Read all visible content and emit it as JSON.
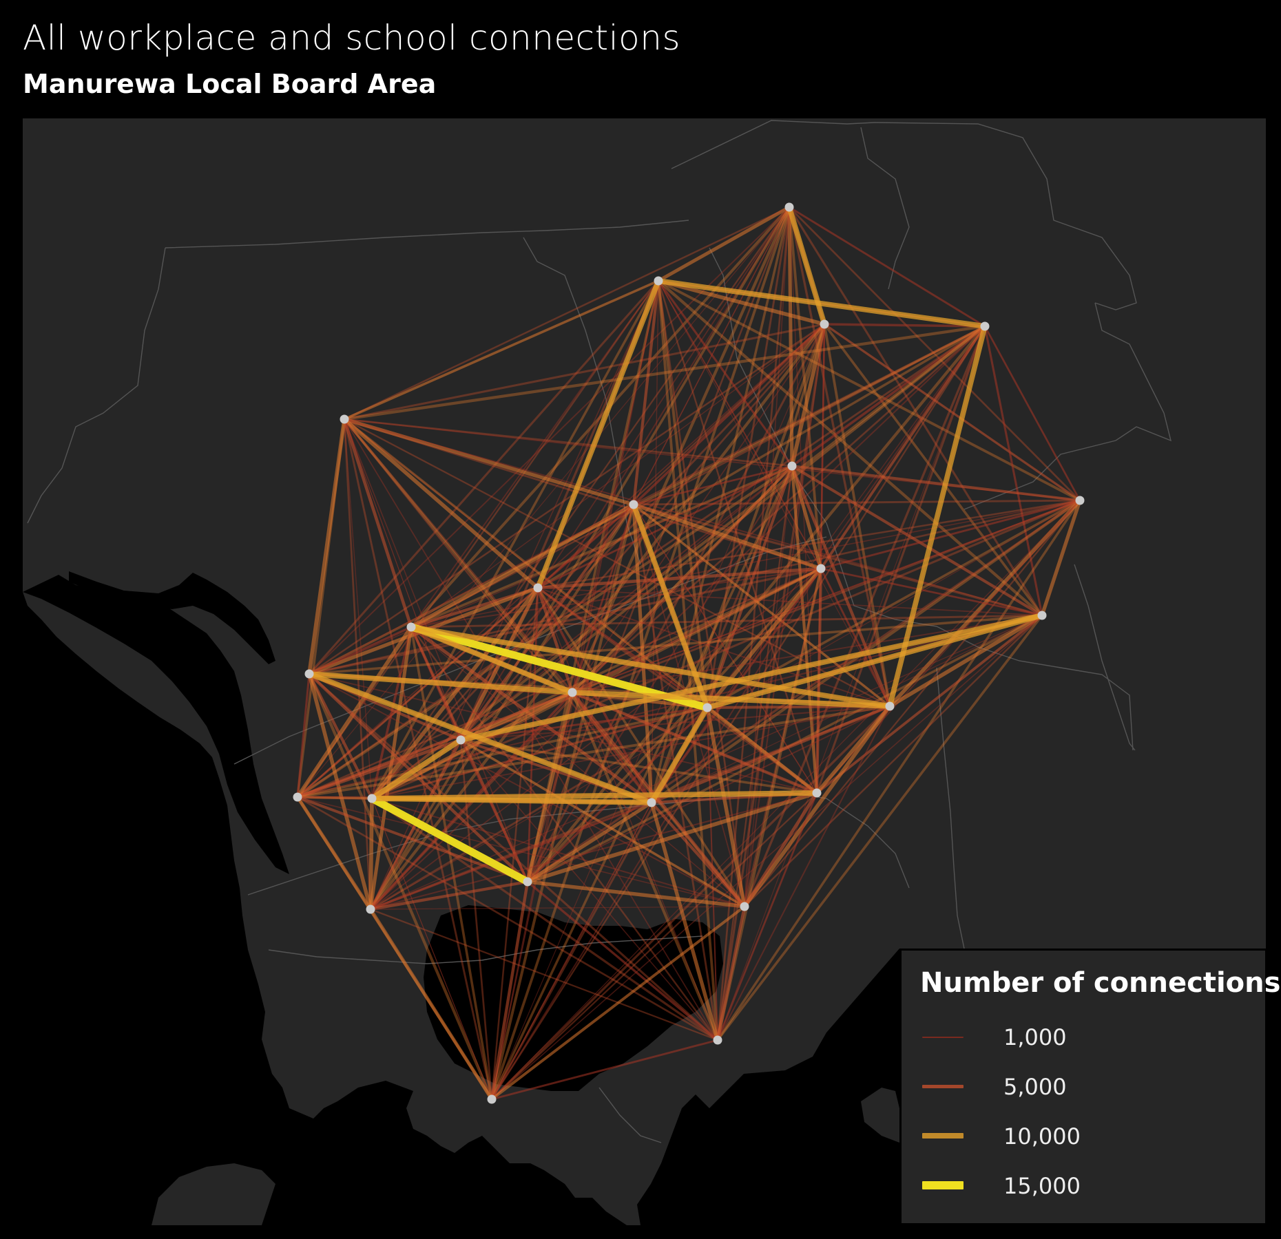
{
  "title": "All workplace and school connections",
  "subtitle": "Manurewa Local Board Area",
  "legend": {
    "title": "Number of connections",
    "items": [
      {
        "label": "1,000",
        "value": 1000,
        "color": "#7a2a1f"
      },
      {
        "label": "5,000",
        "value": 5000,
        "color": "#a4472b"
      },
      {
        "label": "10,000",
        "value": 10000,
        "color": "#c18a2a"
      },
      {
        "label": "15,000",
        "value": 15000,
        "color": "#f0e020"
      }
    ]
  },
  "colors": {
    "background": "#000000",
    "land": "#262626",
    "boundary": "#5a5a5a",
    "node": "#cccccc"
  },
  "map": {
    "nodes": [
      {
        "id": "n1"
      },
      {
        "id": "n2"
      },
      {
        "id": "n3"
      },
      {
        "id": "n4"
      },
      {
        "id": "n5"
      },
      {
        "id": "n6"
      },
      {
        "id": "n7"
      },
      {
        "id": "n8"
      },
      {
        "id": "n9"
      },
      {
        "id": "n10"
      },
      {
        "id": "n11"
      },
      {
        "id": "n12"
      },
      {
        "id": "n13"
      },
      {
        "id": "n14"
      },
      {
        "id": "n15"
      },
      {
        "id": "n16"
      },
      {
        "id": "n17"
      },
      {
        "id": "n18"
      },
      {
        "id": "n19"
      },
      {
        "id": "n20"
      },
      {
        "id": "n21"
      },
      {
        "id": "n22"
      },
      {
        "id": "n23"
      },
      {
        "id": "n24"
      },
      {
        "id": "n25"
      },
      {
        "id": "n26"
      }
    ],
    "highlight_connections": [
      {
        "from": "n12",
        "to": "n11",
        "value": 15000
      },
      {
        "from": "n19",
        "to": "n22",
        "value": 15000
      },
      {
        "from": "n1",
        "to": "n2",
        "value": 10000
      },
      {
        "from": "n3",
        "to": "n4",
        "value": 10000
      },
      {
        "from": "n4",
        "to": "n17",
        "value": 10000
      },
      {
        "from": "n3",
        "to": "n10",
        "value": 10000
      },
      {
        "from": "n11",
        "to": "n7",
        "value": 10000
      },
      {
        "from": "n15",
        "to": "n13",
        "value": 10000
      },
      {
        "from": "n19",
        "to": "n20",
        "value": 10000
      },
      {
        "from": "n16",
        "to": "n19",
        "value": 10000
      },
      {
        "from": "n19",
        "to": "n21",
        "value": 10000
      },
      {
        "from": "n13",
        "to": "n20",
        "value": 10000
      },
      {
        "from": "n11",
        "to": "n20",
        "value": 10000
      },
      {
        "from": "n12",
        "to": "n15",
        "value": 10000
      },
      {
        "from": "n14",
        "to": "n16",
        "value": 10000
      },
      {
        "from": "n11",
        "to": "n14",
        "value": 10000
      },
      {
        "from": "n12",
        "to": "n17",
        "value": 10000
      },
      {
        "from": "n15",
        "to": "n17",
        "value": 10000
      }
    ]
  }
}
